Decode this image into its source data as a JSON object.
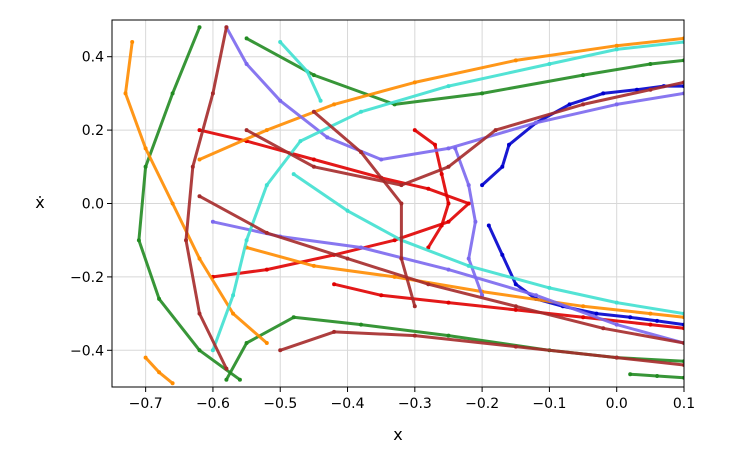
{
  "chart_data": {
    "type": "scatter",
    "title": "",
    "xlabel": "x",
    "ylabel": "ẋ",
    "xlim": [
      -0.75,
      0.1
    ],
    "ylim": [
      -0.5,
      0.5
    ],
    "xticks": [
      -0.7,
      -0.6,
      -0.5,
      -0.4,
      -0.3,
      -0.2,
      -0.1,
      0.0,
      0.1
    ],
    "yticks": [
      -0.4,
      -0.2,
      0.0,
      0.2,
      0.4
    ],
    "xtick_labels": [
      "−0.7",
      "−0.6",
      "−0.5",
      "−0.4",
      "−0.3",
      "−0.2",
      "−0.1",
      "0.0",
      "0.1"
    ],
    "ytick_labels": [
      "−0.4",
      "−0.2",
      "0.0",
      "0.2",
      "0.4"
    ],
    "grid": true,
    "series": [
      {
        "color": "#0000cd",
        "values": [
          [
            -0.19,
            -0.06
          ],
          [
            -0.17,
            -0.14
          ],
          [
            -0.15,
            -0.22
          ],
          [
            -0.12,
            -0.26
          ],
          [
            -0.08,
            -0.28
          ],
          [
            -0.03,
            -0.3
          ],
          [
            0.02,
            -0.31
          ],
          [
            0.06,
            -0.32
          ],
          [
            0.1,
            -0.33
          ]
        ]
      },
      {
        "color": "#0000cd",
        "values": [
          [
            -0.2,
            0.05
          ],
          [
            -0.17,
            0.1
          ],
          [
            -0.16,
            0.16
          ],
          [
            -0.12,
            0.22
          ],
          [
            -0.07,
            0.27
          ],
          [
            -0.02,
            0.3
          ],
          [
            0.03,
            0.31
          ],
          [
            0.07,
            0.32
          ],
          [
            0.1,
            0.32
          ]
        ]
      },
      {
        "color": "#e00000",
        "values": [
          [
            -0.62,
            0.2
          ],
          [
            -0.55,
            0.17
          ],
          [
            -0.45,
            0.12
          ],
          [
            -0.35,
            0.07
          ],
          [
            -0.28,
            0.04
          ],
          [
            -0.22,
            0.0
          ],
          [
            -0.25,
            -0.05
          ],
          [
            -0.33,
            -0.1
          ],
          [
            -0.42,
            -0.14
          ],
          [
            -0.52,
            -0.18
          ],
          [
            -0.6,
            -0.2
          ]
        ]
      },
      {
        "color": "#e00000",
        "values": [
          [
            -0.42,
            -0.22
          ],
          [
            -0.35,
            -0.25
          ],
          [
            -0.25,
            -0.27
          ],
          [
            -0.15,
            -0.29
          ],
          [
            -0.05,
            -0.31
          ],
          [
            0.05,
            -0.33
          ],
          [
            0.1,
            -0.34
          ]
        ]
      },
      {
        "color": "#e00000",
        "values": [
          [
            -0.3,
            0.2
          ],
          [
            -0.27,
            0.16
          ],
          [
            -0.26,
            0.08
          ],
          [
            -0.25,
            0.0
          ],
          [
            -0.26,
            -0.06
          ],
          [
            -0.28,
            -0.12
          ]
        ]
      },
      {
        "color": "#228b22",
        "values": [
          [
            -0.62,
            0.48
          ],
          [
            -0.66,
            0.3
          ],
          [
            -0.7,
            0.1
          ],
          [
            -0.71,
            -0.1
          ],
          [
            -0.68,
            -0.26
          ],
          [
            -0.62,
            -0.4
          ],
          [
            -0.56,
            -0.48
          ]
        ]
      },
      {
        "color": "#228b22",
        "values": [
          [
            -0.58,
            -0.48
          ],
          [
            -0.55,
            -0.38
          ],
          [
            -0.48,
            -0.31
          ],
          [
            -0.38,
            -0.33
          ],
          [
            -0.25,
            -0.36
          ],
          [
            -0.1,
            -0.4
          ],
          [
            0.0,
            -0.42
          ],
          [
            0.1,
            -0.43
          ]
        ]
      },
      {
        "color": "#228b22",
        "values": [
          [
            -0.55,
            0.45
          ],
          [
            -0.45,
            0.35
          ],
          [
            -0.33,
            0.27
          ],
          [
            -0.2,
            0.3
          ],
          [
            -0.05,
            0.35
          ],
          [
            0.05,
            0.38
          ],
          [
            0.1,
            0.39
          ]
        ]
      },
      {
        "color": "#228b22",
        "values": [
          [
            0.02,
            -0.465
          ],
          [
            0.06,
            -0.47
          ],
          [
            0.1,
            -0.475
          ]
        ]
      },
      {
        "color": "#ff8c00",
        "values": [
          [
            -0.72,
            0.44
          ],
          [
            -0.73,
            0.3
          ],
          [
            -0.7,
            0.15
          ],
          [
            -0.66,
            0.0
          ],
          [
            -0.62,
            -0.15
          ],
          [
            -0.57,
            -0.3
          ],
          [
            -0.52,
            -0.38
          ]
        ]
      },
      {
        "color": "#ff8c00",
        "values": [
          [
            -0.62,
            0.12
          ],
          [
            -0.52,
            0.2
          ],
          [
            -0.42,
            0.27
          ],
          [
            -0.3,
            0.33
          ],
          [
            -0.15,
            0.39
          ],
          [
            -0.0,
            0.43
          ],
          [
            0.1,
            0.45
          ]
        ]
      },
      {
        "color": "#ff8c00",
        "values": [
          [
            -0.55,
            -0.12
          ],
          [
            -0.45,
            -0.17
          ],
          [
            -0.33,
            -0.2
          ],
          [
            -0.2,
            -0.24
          ],
          [
            -0.05,
            -0.28
          ],
          [
            0.05,
            -0.3
          ],
          [
            0.1,
            -0.31
          ]
        ]
      },
      {
        "color": "#ff8c00",
        "values": [
          [
            -0.7,
            -0.42
          ],
          [
            -0.68,
            -0.46
          ],
          [
            -0.66,
            -0.49
          ]
        ]
      },
      {
        "color": "#7b68ee",
        "values": [
          [
            -0.58,
            0.48
          ],
          [
            -0.55,
            0.38
          ],
          [
            -0.5,
            0.28
          ],
          [
            -0.43,
            0.18
          ],
          [
            -0.35,
            0.12
          ],
          [
            -0.25,
            0.15
          ],
          [
            -0.12,
            0.22
          ],
          [
            0.0,
            0.27
          ],
          [
            0.1,
            0.3
          ]
        ]
      },
      {
        "color": "#7b68ee",
        "values": [
          [
            -0.6,
            -0.05
          ],
          [
            -0.5,
            -0.09
          ],
          [
            -0.38,
            -0.12
          ],
          [
            -0.25,
            -0.18
          ],
          [
            -0.12,
            -0.25
          ],
          [
            0.0,
            -0.33
          ],
          [
            0.1,
            -0.38
          ]
        ]
      },
      {
        "color": "#7b68ee",
        "values": [
          [
            -0.24,
            0.15
          ],
          [
            -0.22,
            0.05
          ],
          [
            -0.21,
            -0.05
          ],
          [
            -0.22,
            -0.15
          ],
          [
            -0.2,
            -0.25
          ]
        ]
      },
      {
        "color": "#40e0d0",
        "values": [
          [
            -0.6,
            -0.4
          ],
          [
            -0.57,
            -0.25
          ],
          [
            -0.55,
            -0.1
          ],
          [
            -0.52,
            0.05
          ],
          [
            -0.47,
            0.17
          ],
          [
            -0.38,
            0.25
          ],
          [
            -0.25,
            0.32
          ],
          [
            -0.1,
            0.38
          ],
          [
            0.0,
            0.42
          ],
          [
            0.1,
            0.44
          ]
        ]
      },
      {
        "color": "#40e0d0",
        "values": [
          [
            -0.48,
            0.08
          ],
          [
            -0.4,
            -0.02
          ],
          [
            -0.32,
            -0.1
          ],
          [
            -0.22,
            -0.17
          ],
          [
            -0.1,
            -0.23
          ],
          [
            0.0,
            -0.27
          ],
          [
            0.1,
            -0.3
          ]
        ]
      },
      {
        "color": "#40e0d0",
        "values": [
          [
            -0.5,
            0.44
          ],
          [
            -0.46,
            0.36
          ],
          [
            -0.44,
            0.28
          ]
        ]
      },
      {
        "color": "#a52a2a",
        "values": [
          [
            -0.58,
            0.48
          ],
          [
            -0.6,
            0.3
          ],
          [
            -0.63,
            0.1
          ],
          [
            -0.64,
            -0.1
          ],
          [
            -0.62,
            -0.3
          ],
          [
            -0.58,
            -0.45
          ]
        ]
      },
      {
        "color": "#a52a2a",
        "values": [
          [
            -0.62,
            0.02
          ],
          [
            -0.52,
            -0.08
          ],
          [
            -0.4,
            -0.15
          ],
          [
            -0.28,
            -0.22
          ],
          [
            -0.15,
            -0.28
          ],
          [
            -0.02,
            -0.34
          ],
          [
            0.1,
            -0.38
          ]
        ]
      },
      {
        "color": "#a52a2a",
        "values": [
          [
            -0.55,
            0.2
          ],
          [
            -0.45,
            0.1
          ],
          [
            -0.32,
            0.05
          ],
          [
            -0.25,
            0.1
          ],
          [
            -0.18,
            0.2
          ],
          [
            -0.05,
            0.27
          ],
          [
            0.05,
            0.31
          ],
          [
            0.1,
            0.33
          ]
        ]
      },
      {
        "color": "#a52a2a",
        "values": [
          [
            -0.5,
            -0.4
          ],
          [
            -0.42,
            -0.35
          ],
          [
            -0.3,
            -0.36
          ],
          [
            -0.15,
            -0.39
          ],
          [
            0.0,
            -0.42
          ],
          [
            0.1,
            -0.44
          ]
        ]
      },
      {
        "color": "#a52a2a",
        "values": [
          [
            -0.45,
            0.25
          ],
          [
            -0.38,
            0.14
          ],
          [
            -0.32,
            0.0
          ],
          [
            -0.32,
            -0.15
          ],
          [
            -0.3,
            -0.28
          ]
        ]
      }
    ]
  }
}
